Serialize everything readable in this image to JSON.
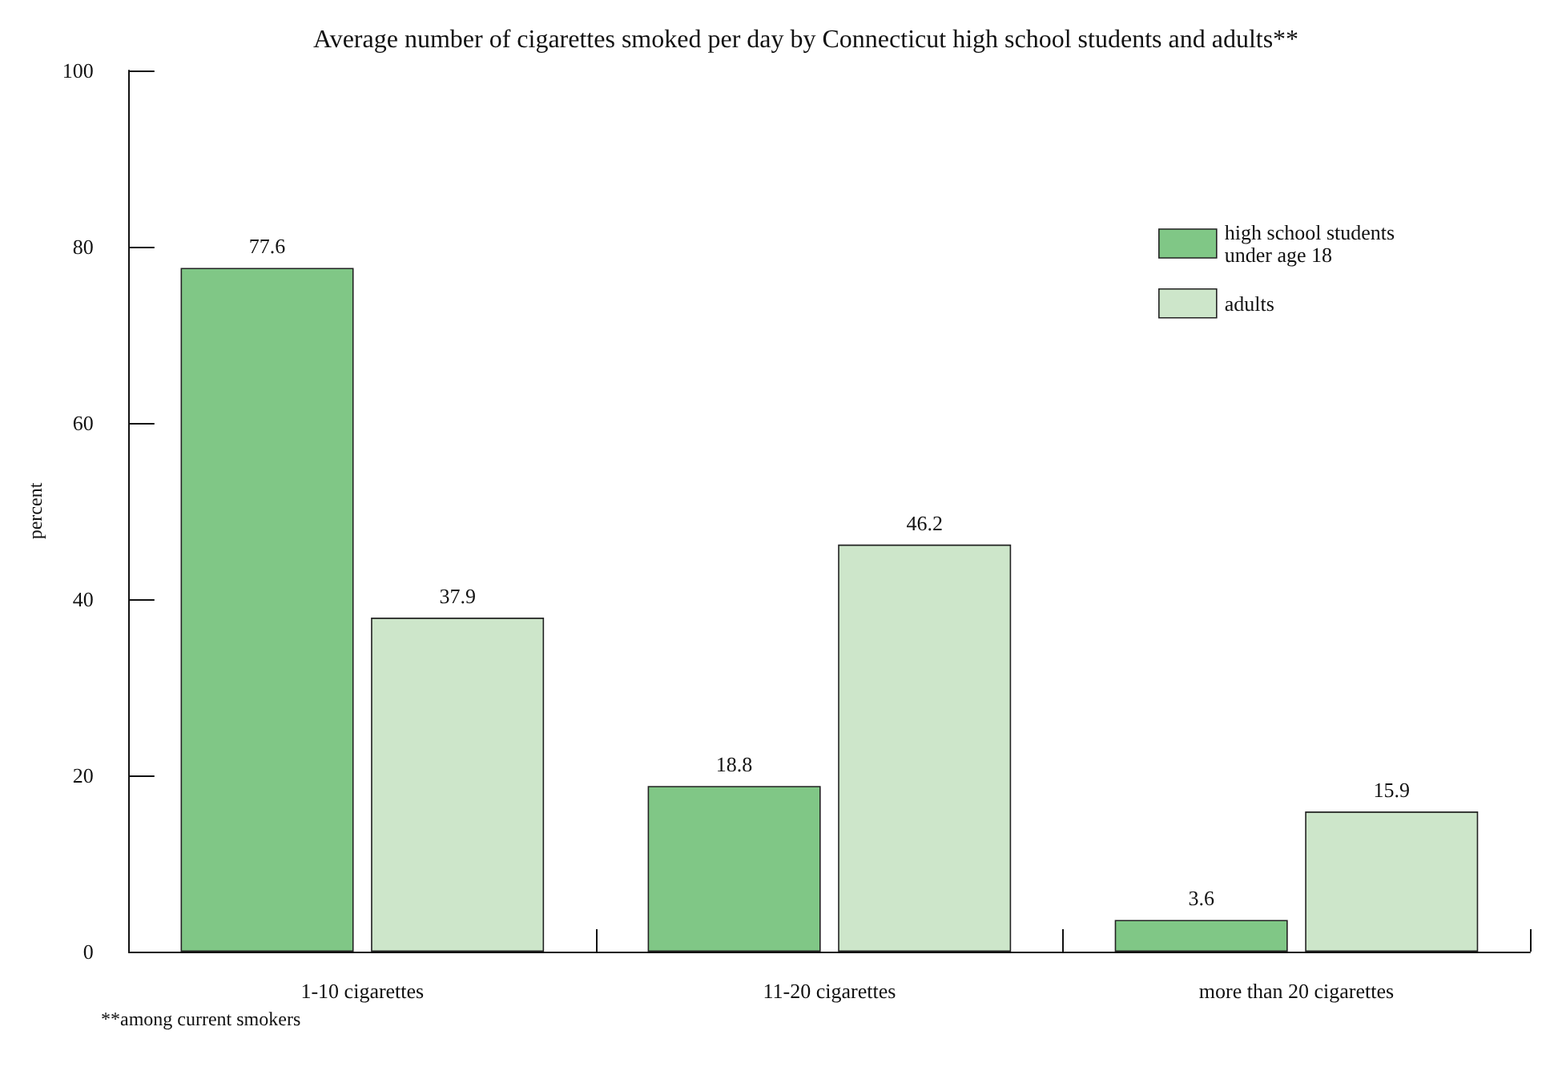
{
  "chart_data": {
    "type": "bar",
    "title": "Average number of cigarettes smoked per day by Connecticut high school students and adults**",
    "ylabel": "percent",
    "categories": [
      "1-10 cigarettes",
      "11-20 cigarettes",
      "more than 20 cigarettes"
    ],
    "series": [
      {
        "name": "high school students under age 18",
        "color": "#80c786",
        "values": [
          77.6,
          18.8,
          3.6
        ]
      },
      {
        "name": "adults",
        "color": "#cde6ca",
        "values": [
          37.9,
          46.2,
          15.9
        ]
      }
    ],
    "ylim": [
      0,
      100
    ],
    "yticks": [
      0,
      20,
      40,
      60,
      80,
      100
    ],
    "grid": false,
    "legend": "top right",
    "data_labels": true,
    "annotations": [
      "**among current smokers"
    ]
  }
}
